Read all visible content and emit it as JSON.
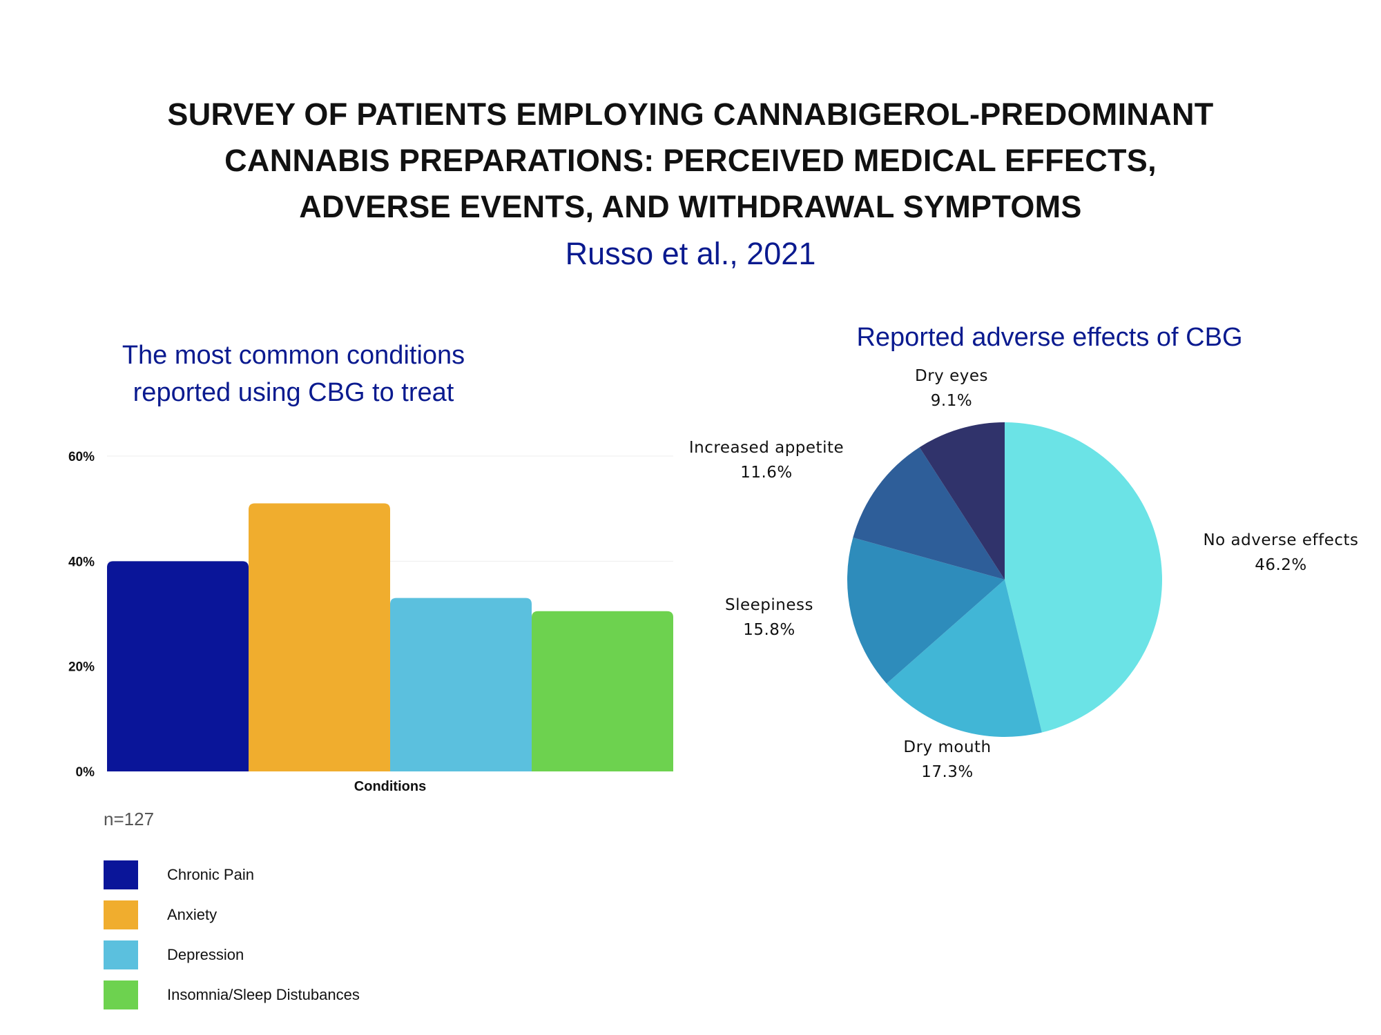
{
  "header": {
    "title_lines": [
      "SURVEY OF PATIENTS EMPLOYING CANNABIGEROL-PREDOMINANT",
      "CANNABIS PREPARATIONS: PERCEIVED MEDICAL EFFECTS,",
      "ADVERSE EVENTS, AND WITHDRAWAL SYMPTOMS"
    ],
    "citation": "Russo et al., 2021"
  },
  "chart_data": [
    {
      "type": "bar",
      "title_lines": [
        "The most common conditions",
        "reported using CBG to treat"
      ],
      "xlabel": "Conditions",
      "ylabel": "",
      "categories": [
        "Chronic Pain",
        "Anxiety",
        "Depression",
        "Insomnia/Sleep Distubances"
      ],
      "values": [
        40,
        51,
        33,
        30.5
      ],
      "colors": [
        "#0a1599",
        "#f0ad2e",
        "#5bc0de",
        "#6dd24f"
      ],
      "ylim": [
        0,
        60
      ],
      "yticks": [
        {
          "value": 0,
          "label": "0%"
        },
        {
          "value": 20,
          "label": "20%"
        },
        {
          "value": 40,
          "label": "40%"
        },
        {
          "value": 60,
          "label": "60%"
        }
      ],
      "grid": true,
      "legend": "bottom-left",
      "note": "n=127"
    },
    {
      "type": "pie",
      "title": "Reported adverse effects of CBG",
      "slices": [
        {
          "label": "No adverse effects",
          "pct_label": "46.2%",
          "value": 46.2,
          "color": "#6be3e6"
        },
        {
          "label": "Dry mouth",
          "pct_label": "17.3%",
          "value": 17.3,
          "color": "#41b6d6"
        },
        {
          "label": "Sleepiness",
          "pct_label": "15.8%",
          "value": 15.8,
          "color": "#2e8cbb"
        },
        {
          "label": "Increased appetite",
          "pct_label": "11.6%",
          "value": 11.6,
          "color": "#2e5e99"
        },
        {
          "label": "Dry eyes",
          "pct_label": "9.1%",
          "value": 9.1,
          "color": "#30336b"
        }
      ]
    }
  ]
}
